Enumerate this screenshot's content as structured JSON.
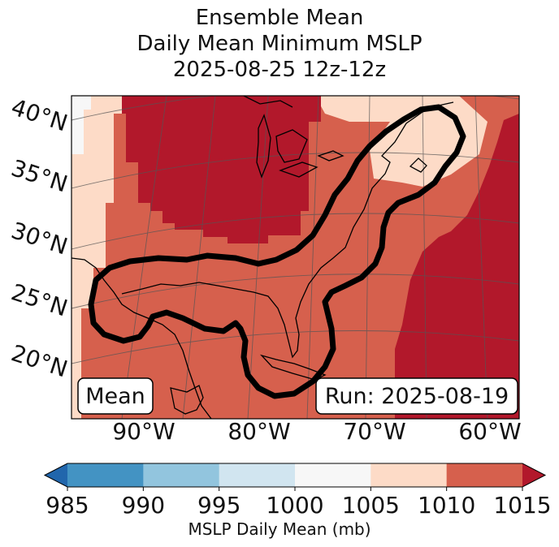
{
  "title": {
    "line1": "Ensemble Mean",
    "line2": "Daily Mean Minimum MSLP",
    "line3": "2025-08-25 12z-12z"
  },
  "map": {
    "lat_labels": [
      "40°N",
      "35°N",
      "30°N",
      "25°N",
      "20°N"
    ],
    "lon_labels": [
      "90°W",
      "80°W",
      "70°W",
      "60°W"
    ],
    "box_left_label": "Mean",
    "box_right_label": "Run: 2025-08-19",
    "contour_level_mb": 1010
  },
  "colorbar": {
    "ticks": [
      "985",
      "990",
      "995",
      "1000",
      "1005",
      "1010",
      "1015"
    ],
    "bins": [
      {
        "from": 985,
        "to": 990,
        "color": "#4393c3"
      },
      {
        "from": 990,
        "to": 995,
        "color": "#92c5de"
      },
      {
        "from": 995,
        "to": 1000,
        "color": "#d1e5f0"
      },
      {
        "from": 1000,
        "to": 1005,
        "color": "#f7f7f7"
      },
      {
        "from": 1005,
        "to": 1010,
        "color": "#fddbc7"
      },
      {
        "from": 1010,
        "to": 1015,
        "color": "#d6604d"
      }
    ],
    "under_color": "#2166ac",
    "over_color": "#b2182b",
    "label": "MSLP Daily Mean (mb)"
  }
}
